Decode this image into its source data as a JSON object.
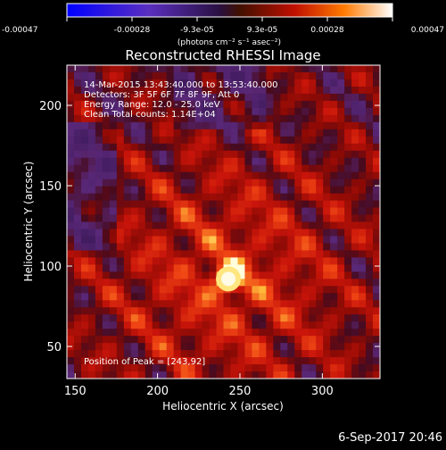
{
  "chart_data": {
    "type": "heatmap",
    "title": "Reconstructed RHESSI Image",
    "xlabel": "Heliocentric X (arcsec)",
    "ylabel": "Heliocentric Y (arcsec)",
    "xlim": [
      145,
      335
    ],
    "ylim": [
      30,
      225
    ],
    "x_ticks": [
      "150",
      "200",
      "250",
      "300"
    ],
    "y_ticks": [
      "50",
      "100",
      "150",
      "200"
    ],
    "x_tick_values": [
      150,
      200,
      250,
      300
    ],
    "y_tick_values": [
      50,
      100,
      150,
      200
    ],
    "colorbar": {
      "ticks": [
        "-0.00047",
        "-0.00028",
        "-9.3e-05",
        "9.3e-05",
        "0.00028",
        "0.00047"
      ],
      "min": -0.00047,
      "max": 0.00047,
      "units_label": "(photons cm⁻² s⁻¹ asec⁻²)"
    },
    "annotations": [
      "14-Mar-2015 13:43:40.000 to 13:53:40.000",
      "Detectors: 3F 5F 6F 7F 8F 9F, Att 0",
      "Energy Range: 12.0 - 25.0 keV",
      "Clean     Total counts: 1.14E+04"
    ],
    "peak_label": "Position of Peak = [243,92]",
    "peak": {
      "x": 243,
      "y": 92
    },
    "footer_date": "6-Sep-2017 20:46"
  }
}
